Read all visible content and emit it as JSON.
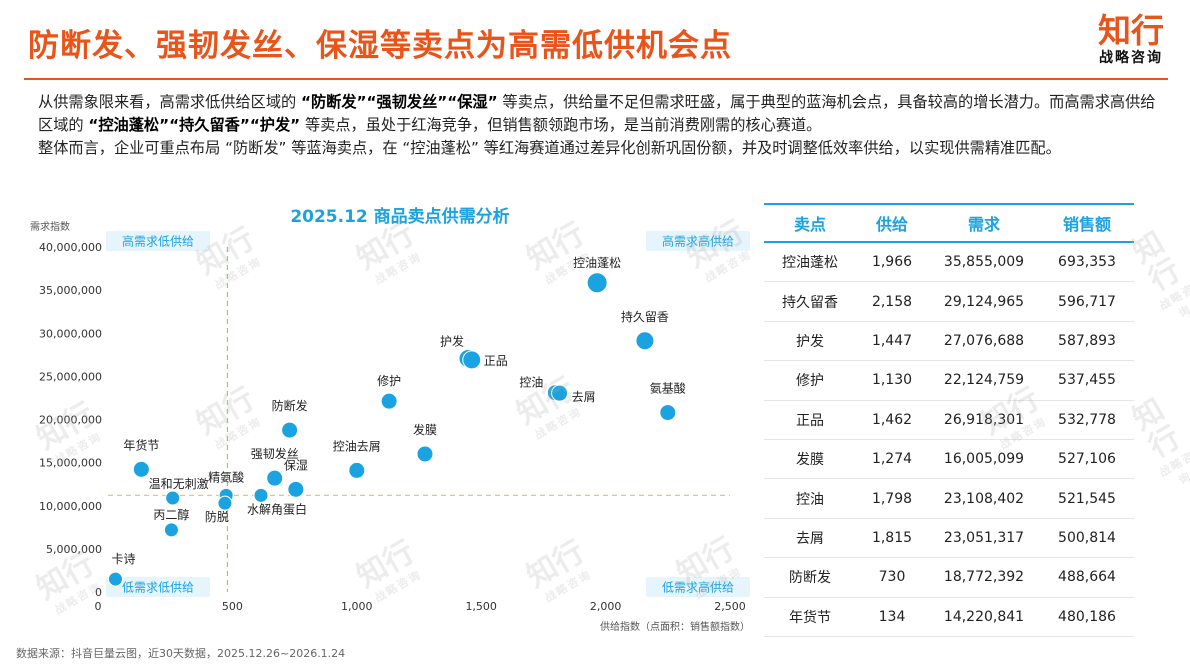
{
  "header": {
    "title": "防断发、强韧发丝、保湿等卖点为高需低供机会点",
    "logo_main": "知行",
    "logo_sub": "战略咨询"
  },
  "description": {
    "p1_a": "从供需象限来看，高需求低供给区域的 ",
    "p1_b": "“防断发”“强韧发丝”“保湿”",
    "p1_c": " 等卖点，供给量不足但需求旺盛，属于典型的蓝海机会点，具备较高的增长潜力。而高需求高供给区域的 ",
    "p1_d": "“控油蓬松”“持久留香”“护发”",
    "p1_e": " 等卖点，虽处于红海竞争，但销售额领跑市场，是当前消费刚需的核心赛道。",
    "p2": "整体而言，企业可重点布局 “防断发” 等蓝海卖点，在 “控油蓬松” 等红海赛道通过差异化创新巩固份额，并及时调整低效率供给，以实现供需精准匹配。"
  },
  "chart_data": {
    "type": "scatter",
    "title": "2025.12 商品卖点供需分析",
    "ylabel": "需求指数",
    "xlabel": "供给指数（点面积：销售额指数）",
    "xlim": [
      0,
      2500
    ],
    "ylim": [
      0,
      40000000
    ],
    "x_ticks": [
      "0",
      "500",
      "1,000",
      "1,500",
      "2,000",
      "2,500"
    ],
    "y_ticks": [
      "0",
      "5,000,000",
      "10,000,000",
      "15,000,000",
      "20,000,000",
      "25,000,000",
      "30,000,000",
      "35,000,000",
      "40,000,000"
    ],
    "ref_x": 480,
    "ref_y": 11200000,
    "quadrants": {
      "top_left": "高需求低供给",
      "top_right": "高需求高供给",
      "bottom_left": "低需求低供给",
      "bottom_right": "低需求高供给"
    },
    "points": [
      {
        "label": "控油蓬松",
        "x": 1966,
        "y": 35855009
      },
      {
        "label": "持久留香",
        "x": 2158,
        "y": 29124965
      },
      {
        "label": "护发",
        "x": 1447,
        "y": 27076688
      },
      {
        "label": "正品",
        "x": 1462,
        "y": 26918301
      },
      {
        "label": "修护",
        "x": 1130,
        "y": 22124759
      },
      {
        "label": "控油",
        "x": 1798,
        "y": 23108402
      },
      {
        "label": "去屑",
        "x": 1815,
        "y": 23051317
      },
      {
        "label": "氨基酸",
        "x": 2250,
        "y": 20800000
      },
      {
        "label": "防断发",
        "x": 730,
        "y": 18772392
      },
      {
        "label": "发膜",
        "x": 1274,
        "y": 16005099
      },
      {
        "label": "控油去屑",
        "x": 1000,
        "y": 14100000
      },
      {
        "label": "年货节",
        "x": 134,
        "y": 14220841
      },
      {
        "label": "强韧发丝",
        "x": 670,
        "y": 13200000
      },
      {
        "label": "保湿",
        "x": 755,
        "y": 11900000
      },
      {
        "label": "精氨酸",
        "x": 475,
        "y": 11200000
      },
      {
        "label": "温和无刺激",
        "x": 260,
        "y": 10900000
      },
      {
        "label": "水解角蛋白",
        "x": 615,
        "y": 11200000
      },
      {
        "label": "防脱",
        "x": 470,
        "y": 10300000
      },
      {
        "label": "丙二醇",
        "x": 255,
        "y": 7200000
      },
      {
        "label": "卡诗",
        "x": 30,
        "y": 1500000
      }
    ]
  },
  "table": {
    "headers": [
      "卖点",
      "供给",
      "需求",
      "销售额"
    ],
    "rows": [
      [
        "控油蓬松",
        "1,966",
        "35,855,009",
        "693,353"
      ],
      [
        "持久留香",
        "2,158",
        "29,124,965",
        "596,717"
      ],
      [
        "护发",
        "1,447",
        "27,076,688",
        "587,893"
      ],
      [
        "修护",
        "1,130",
        "22,124,759",
        "537,455"
      ],
      [
        "正品",
        "1,462",
        "26,918,301",
        "532,778"
      ],
      [
        "发膜",
        "1,274",
        "16,005,099",
        "527,106"
      ],
      [
        "控油",
        "1,798",
        "23,108,402",
        "521,545"
      ],
      [
        "去屑",
        "1,815",
        "23,051,317",
        "500,814"
      ],
      [
        "防断发",
        "730",
        "18,772,392",
        "488,664"
      ],
      [
        "年货节",
        "134",
        "14,220,841",
        "480,186"
      ]
    ]
  },
  "footer": {
    "source": "数据来源：抖音巨量云图，近30天数据，2025.12.26~2026.1.24"
  },
  "colors": {
    "accent": "#e8541a",
    "blue": "#1aa3e0",
    "ref_line": "#f5c26b",
    "ref_line_v": "#8fcf7a"
  }
}
